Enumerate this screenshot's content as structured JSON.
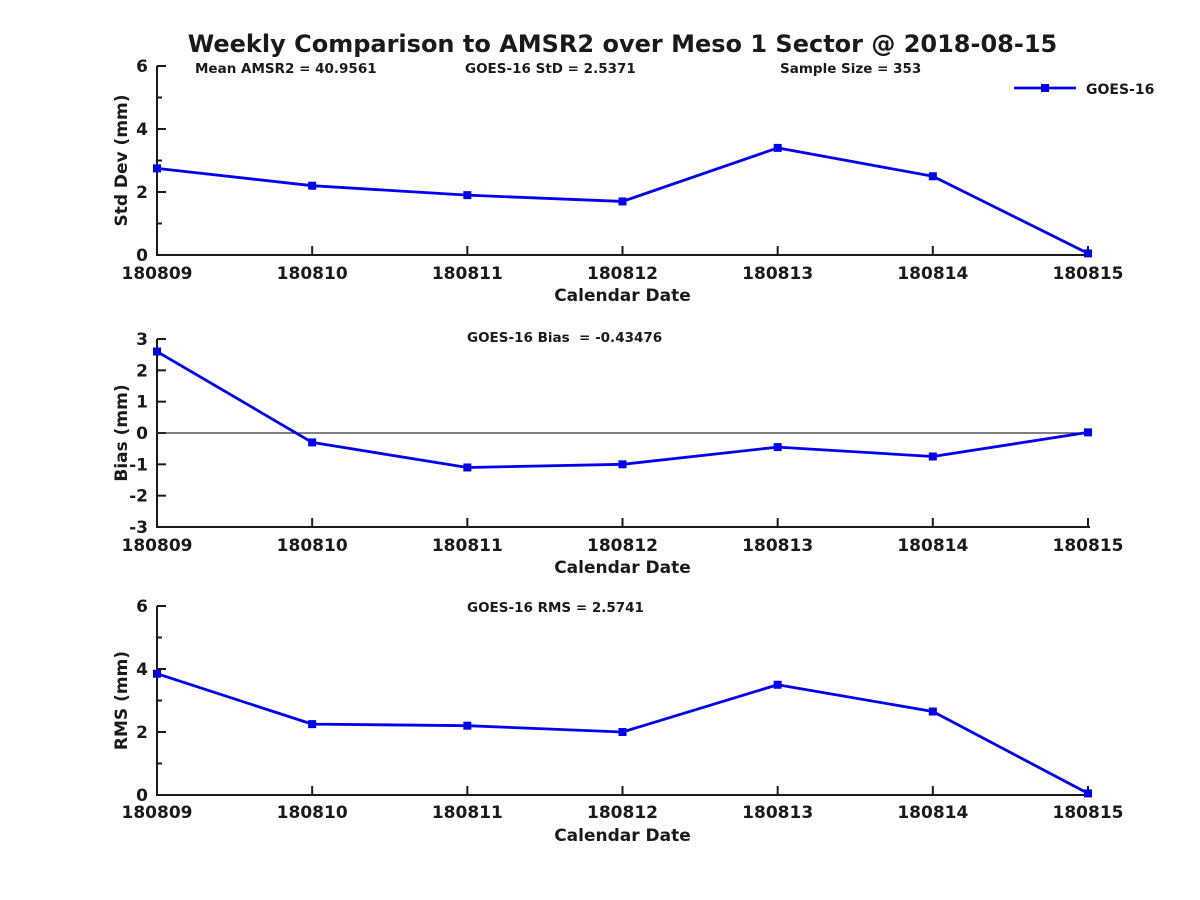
{
  "figure": {
    "title": "Weekly Comparison to AMSR2 over Meso 1 Sector @ 2018-08-15"
  },
  "colors": {
    "series_blue": "#0000EE",
    "axis_black": "#1a1a1a",
    "zero_line_black": "#333333"
  },
  "legend": {
    "label": "GOES-16"
  },
  "chart_data": [
    {
      "id": "std-dev",
      "type": "line",
      "series_name": "GOES-16",
      "categories": [
        "180809",
        "180810",
        "180811",
        "180812",
        "180813",
        "180814",
        "180815"
      ],
      "values": [
        2.75,
        2.2,
        1.9,
        1.7,
        3.4,
        2.5,
        0.05
      ],
      "xlabel": "Calendar Date",
      "ylabel": "Std Dev (mm)",
      "ylim": [
        0,
        6
      ],
      "yticks": [
        0,
        2,
        4,
        6
      ],
      "minor_yticks": [
        1,
        3,
        5
      ],
      "zero_line": false,
      "grid": false,
      "legend_position": "top-right",
      "annotations": [
        "Mean AMSR2 = 40.9561",
        "GOES-16 StD = 2.5371",
        "Sample Size = 353"
      ]
    },
    {
      "id": "bias",
      "type": "line",
      "series_name": "GOES-16",
      "categories": [
        "180809",
        "180810",
        "180811",
        "180812",
        "180813",
        "180814",
        "180815"
      ],
      "values": [
        2.6,
        -0.3,
        -1.1,
        -1.0,
        -0.45,
        -0.75,
        0.02
      ],
      "xlabel": "Calendar Date",
      "ylabel": "Bias (mm)",
      "ylim": [
        -3,
        3
      ],
      "yticks": [
        -3,
        -2,
        -1,
        0,
        1,
        2,
        3
      ],
      "minor_yticks": [],
      "zero_line": true,
      "grid": false,
      "legend_position": "none",
      "annotations": [
        "GOES-16 Bias  = -0.43476"
      ]
    },
    {
      "id": "rms",
      "type": "line",
      "series_name": "GOES-16",
      "categories": [
        "180809",
        "180810",
        "180811",
        "180812",
        "180813",
        "180814",
        "180815"
      ],
      "values": [
        3.85,
        2.25,
        2.2,
        2.0,
        3.5,
        2.65,
        0.05
      ],
      "xlabel": "Calendar Date",
      "ylabel": "RMS (mm)",
      "ylim": [
        0,
        6
      ],
      "yticks": [
        0,
        2,
        4,
        6
      ],
      "minor_yticks": [
        1,
        3,
        5
      ],
      "zero_line": false,
      "grid": false,
      "legend_position": "none",
      "annotations": [
        "GOES-16 RMS = 2.5741"
      ]
    }
  ]
}
